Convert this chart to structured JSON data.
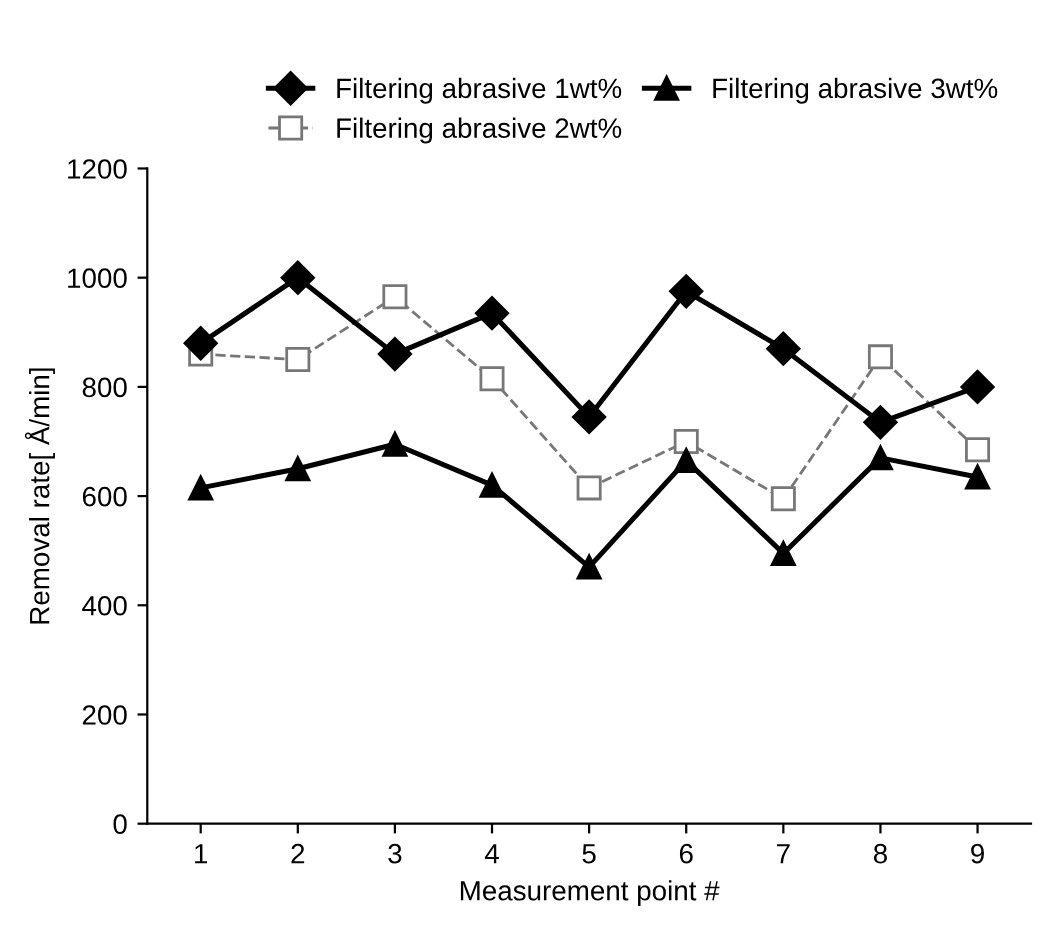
{
  "chart_data": {
    "type": "line",
    "xlabel": "Measurement point #",
    "ylabel": "Removal rate[ Å/min]",
    "categories": [
      "1",
      "2",
      "3",
      "4",
      "5",
      "6",
      "7",
      "8",
      "9"
    ],
    "ylim": [
      0,
      1200
    ],
    "yticks": [
      0,
      200,
      400,
      600,
      800,
      1000,
      1200
    ],
    "grid": false,
    "legend": "top",
    "series": [
      {
        "name": "Filtering abrasive 1wt%",
        "color": "#000000",
        "marker": "diamond",
        "line_style": "solid",
        "values": [
          880,
          1000,
          860,
          935,
          745,
          975,
          870,
          735,
          800
        ]
      },
      {
        "name": "Filtering abrasive 2wt%",
        "color": "#777777",
        "marker": "square",
        "line_style": "dashed",
        "values": [
          860,
          850,
          965,
          815,
          615,
          700,
          595,
          855,
          685
        ]
      },
      {
        "name": "Filtering abrasive 3wt%",
        "color": "#000000",
        "marker": "triangle",
        "line_style": "solid",
        "values": [
          615,
          650,
          695,
          620,
          470,
          665,
          495,
          670,
          635
        ]
      }
    ]
  }
}
